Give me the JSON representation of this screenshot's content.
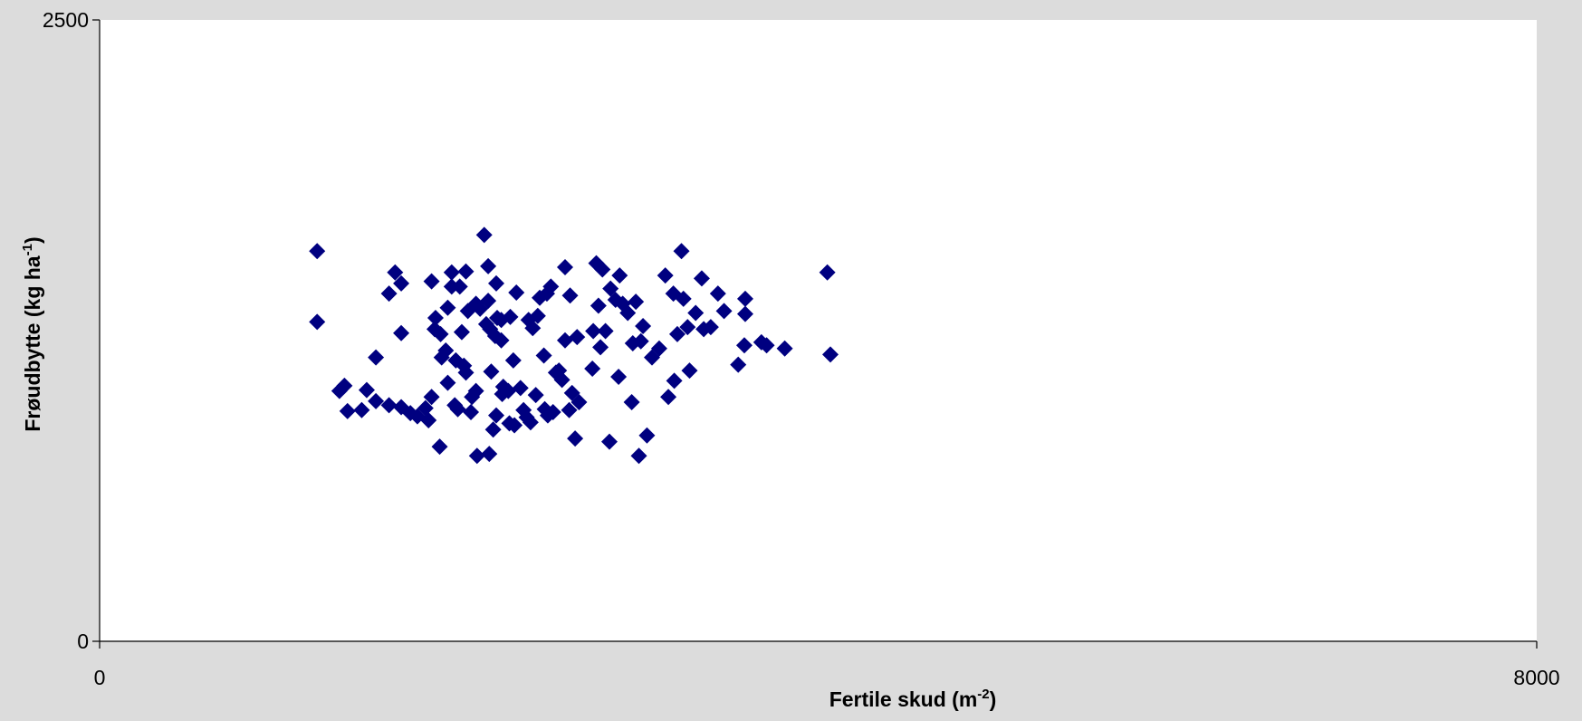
{
  "chart_data": {
    "type": "scatter",
    "x_label": {
      "text": "Fertile skud (m",
      "sup": "-2",
      "end": ")"
    },
    "y_label": {
      "text": "Frøudbytte (kg ha",
      "sup": "-1",
      "end": ")"
    },
    "xlim": [
      0,
      8000
    ],
    "ylim": [
      0,
      2500
    ],
    "xticks": [
      0,
      8000
    ],
    "yticks": [
      0,
      2500
    ],
    "series": [
      {
        "color": "#000080",
        "x": [
          1211,
          1211,
          1335,
          1363,
          1380,
          1459,
          1487,
          1538,
          1538,
          1611,
          1611,
          1645,
          1679,
          1679,
          1679,
          1730,
          1769,
          1814,
          1831,
          1848,
          1848,
          1865,
          1870,
          1893,
          1898,
          1904,
          1927,
          1938,
          1938,
          1960,
          1960,
          1977,
          1983,
          1994,
          2005,
          2016,
          2028,
          2039,
          2039,
          2050,
          2067,
          2073,
          2095,
          2095,
          2101,
          2118,
          2141,
          2152,
          2163,
          2169,
          2163,
          2174,
          2180,
          2191,
          2202,
          2208,
          2208,
          2213,
          2236,
          2236,
          2241,
          2247,
          2275,
          2281,
          2286,
          2303,
          2309,
          2320,
          2343,
          2360,
          2377,
          2388,
          2399,
          2411,
          2428,
          2439,
          2450,
          2473,
          2478,
          2490,
          2495,
          2512,
          2524,
          2540,
          2557,
          2574,
          2591,
          2591,
          2614,
          2619,
          2630,
          2647,
          2658,
          2669,
          2743,
          2748,
          2765,
          2777,
          2788,
          2799,
          2816,
          2838,
          2844,
          2872,
          2889,
          2895,
          2912,
          2940,
          2962,
          2968,
          2985,
          3002,
          3013,
          3025,
          3047,
          3075,
          3115,
          3149,
          3166,
          3194,
          3199,
          3216,
          3239,
          3250,
          3273,
          3284,
          3318,
          3352,
          3363,
          3402,
          3442,
          3476,
          3555,
          3589,
          3594,
          3594,
          3684,
          3713,
          3814,
          4051,
          4068
        ],
        "values": [
          1570,
          1285,
          1007,
          1028,
          926,
          930,
          1011,
          1142,
          966,
          950,
          1399,
          1484,
          1440,
          1240,
          942,
          918,
          905,
          938,
          889,
          983,
          1448,
          1256,
          1301,
          783,
          1236,
          1142,
          1170,
          1342,
          1040,
          1484,
          1427,
          950,
          1130,
          934,
          1427,
          1244,
          1109,
          1488,
          1081,
          1329,
          922,
          983,
          1007,
          1358,
          746,
          1338,
          1635,
          1276,
          1509,
          754,
          1370,
          1256,
          1085,
          852,
          1228,
          909,
          1440,
          1301,
          1211,
          1293,
          995,
          1024,
          1007,
          877,
          1305,
          1130,
          869,
          1403,
          1019,
          930,
          901,
          1293,
          881,
          1260,
          991,
          1309,
          1382,
          1150,
          934,
          1399,
          909,
          1427,
          922,
          1081,
          1089,
          1052,
          1505,
          1211,
          930,
          1391,
          999,
          816,
          1224,
          962,
          1097,
          1248,
          1521,
          1350,
          1183,
          1496,
          1248,
          803,
          1419,
          1374,
          1064,
          1472,
          1358,
          1321,
          962,
          1199,
          1366,
          746,
          1207,
          1268,
          828,
          1142,
          1178,
          1472,
          983,
          1399,
          1048,
          1236,
          1570,
          1378,
          1264,
          1089,
          1321,
          1460,
          1256,
          1264,
          1399,
          1329,
          1113,
          1191,
          1378,
          1317,
          1203,
          1191,
          1178,
          1484,
          1154
        ]
      }
    ]
  }
}
